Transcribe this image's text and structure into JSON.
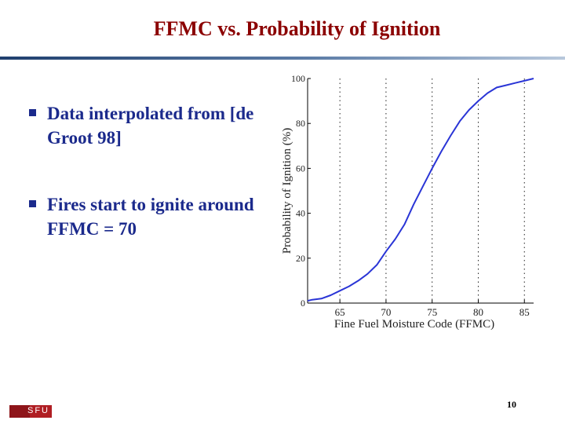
{
  "slide": {
    "title": "FFMC vs. Probability of Ignition",
    "bullets": [
      {
        "label": "Data interpolated from [de Groot 98]"
      },
      {
        "label": "Fires start to ignite around FFMC = 70"
      }
    ],
    "logo_text": "SFU",
    "page_number": "10"
  },
  "colors": {
    "title": "#8b0000",
    "bullet_text": "#1b2a8c",
    "curve": "#2a35d6",
    "logo": "#b01e23"
  },
  "chart_data": {
    "type": "line",
    "title": "",
    "xlabel": "Fine Fuel Moisture Code (FFMC)",
    "ylabel": "Probability of Ignition (%)",
    "xlim": [
      61.5,
      86
    ],
    "ylim": [
      0,
      100
    ],
    "xticks": [
      65,
      70,
      75,
      80,
      85
    ],
    "yticks": [
      0,
      20,
      40,
      60,
      80,
      100
    ],
    "grid": "vertical dotted at x ticks",
    "series": [
      {
        "x": [
          61.5,
          62,
          63,
          64,
          65,
          66,
          67,
          68,
          69,
          70,
          71,
          72,
          73,
          74,
          75,
          76,
          77,
          78,
          79,
          80,
          81,
          82,
          83,
          84,
          85,
          86
        ],
        "y": [
          1,
          1.5,
          2,
          3.5,
          5.5,
          7.5,
          10,
          13,
          17,
          23,
          28.5,
          35,
          44,
          52,
          60,
          67.5,
          74.5,
          81,
          86,
          90,
          93.5,
          96,
          97,
          98,
          99,
          100
        ]
      }
    ]
  }
}
